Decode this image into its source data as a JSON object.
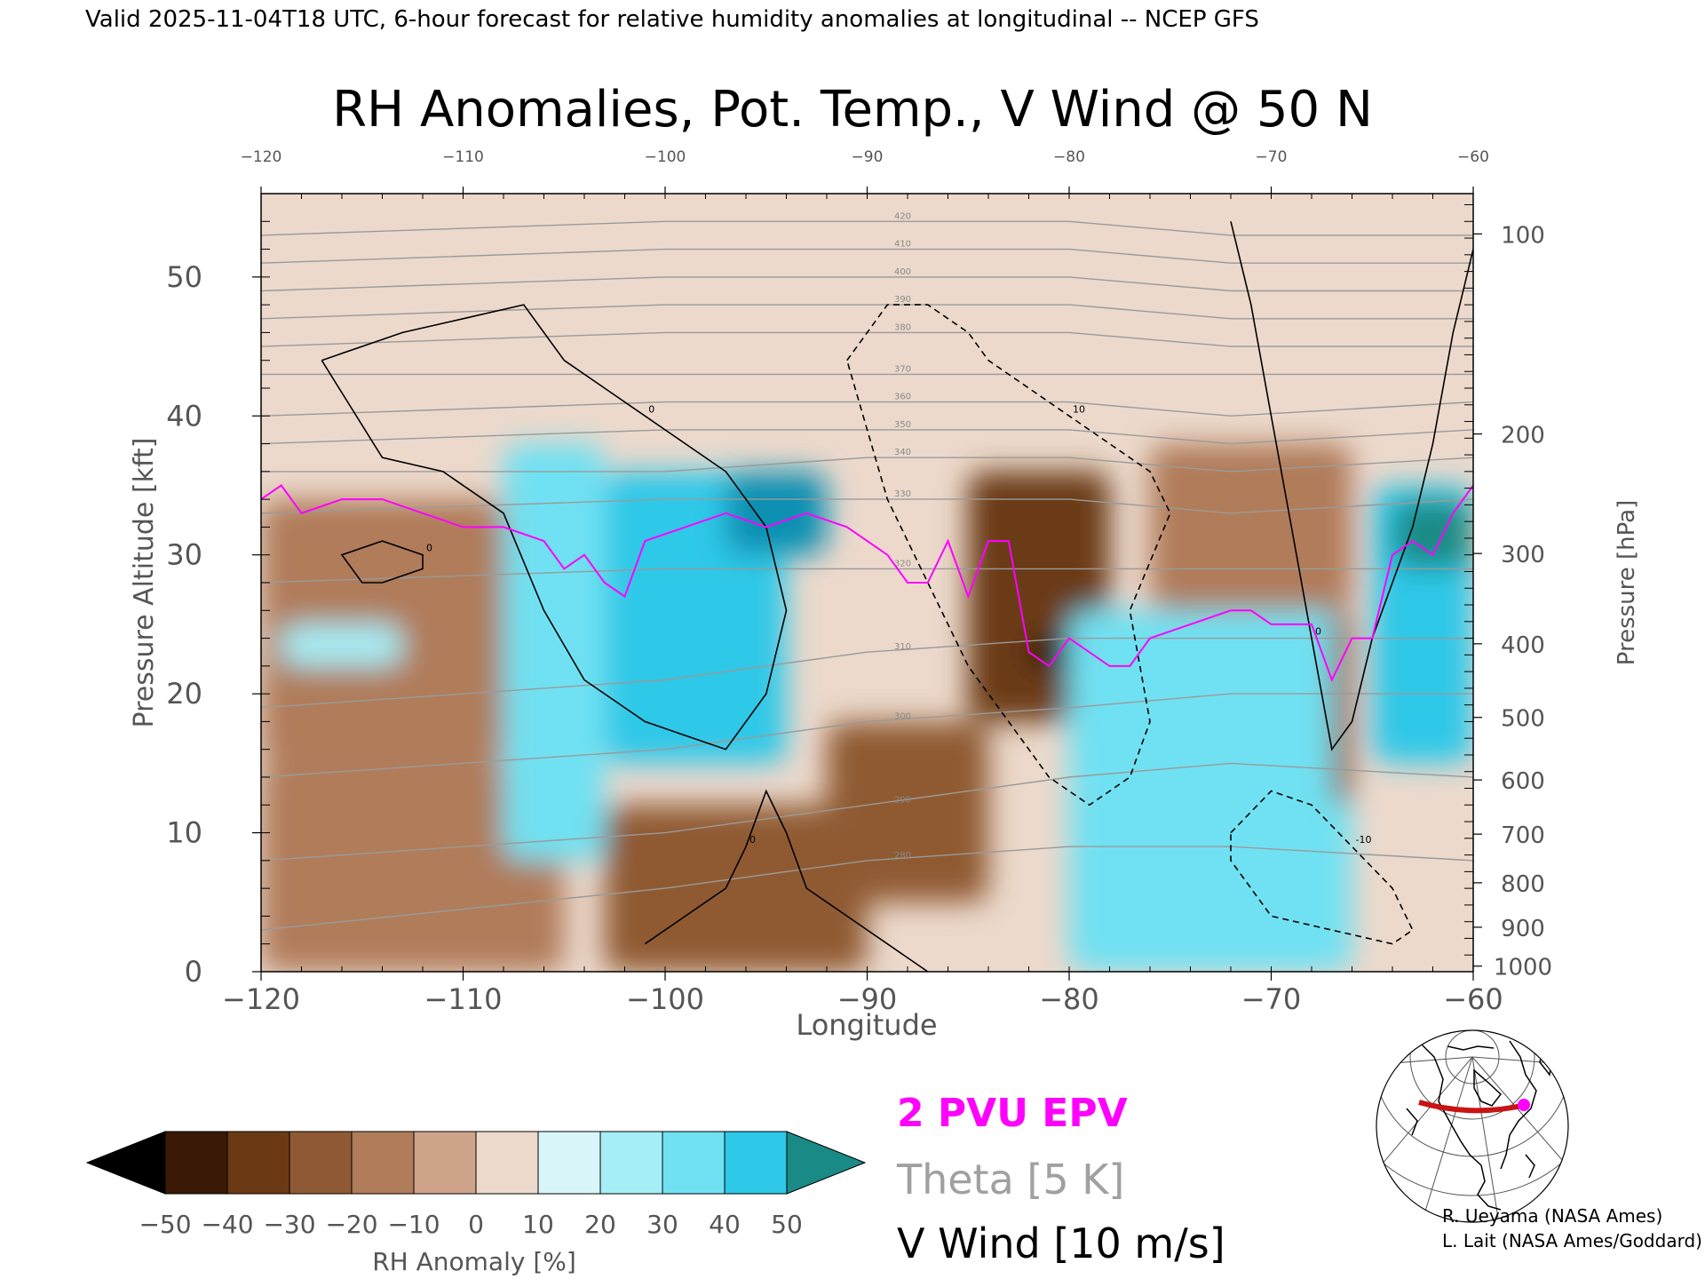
{
  "header": {
    "valid_line": "Valid 2025-11-04T18 UTC, 6-hour forecast for relative humidity anomalies at longitudinal -- NCEP GFS"
  },
  "chart_data": {
    "type": "heatmap",
    "title": "RH Anomalies, Pot. Temp., V Wind @ 50 N",
    "xlabel": "Longitude",
    "ylabel_left": "Pressure Altitude [kft]",
    "ylabel_right": "Pressure [hPa]",
    "xlim": [
      -120,
      -60
    ],
    "ylim": [
      0,
      56
    ],
    "x_ticks": [
      "-120",
      "-110",
      "-100",
      "-90",
      "-80",
      "-70",
      "-60"
    ],
    "x_tick_values": [
      -120,
      -110,
      -100,
      -90,
      -80,
      -70,
      -60
    ],
    "y_ticks": [
      "0",
      "10",
      "20",
      "30",
      "40",
      "50"
    ],
    "y_tick_values": [
      0,
      10,
      20,
      30,
      40,
      50
    ],
    "pressure_ticks": [
      {
        "label": "100",
        "kft": 53.1
      },
      {
        "label": "200",
        "kft": 38.7
      },
      {
        "label": "300",
        "kft": 30.1
      },
      {
        "label": "400",
        "kft": 23.6
      },
      {
        "label": "500",
        "kft": 18.3
      },
      {
        "label": "600",
        "kft": 13.8
      },
      {
        "label": "700",
        "kft": 9.9
      },
      {
        "label": "800",
        "kft": 6.4
      },
      {
        "label": "900",
        "kft": 3.2
      },
      {
        "label": "1000",
        "kft": 0.4
      }
    ],
    "colorbar": {
      "label": "RH Anomaly [%]",
      "ticks": [
        "-50",
        "-40",
        "-30",
        "-20",
        "-10",
        "0",
        "10",
        "20",
        "30",
        "40",
        "50"
      ],
      "low_extend_color": "#000000",
      "high_extend_color": "#1a8a86",
      "colors": [
        "#3a1a06",
        "#6b3a14",
        "#8f5a33",
        "#b07c5a",
        "#cfa48b",
        "#ecd9cc",
        "#d8f6fa",
        "#a6eef6",
        "#6fe1f2",
        "#2ec8e8",
        "#0a90b2"
      ]
    },
    "legend": [
      {
        "label": "2 PVU EPV",
        "color": "#ff00ff"
      },
      {
        "label": "Theta [5 K]",
        "color": "#a0a0a0"
      },
      {
        "label": "V Wind [10 m/s]",
        "color": "#000000"
      }
    ],
    "rh_anomaly_field": [
      {
        "x": [
          -120,
          -108
        ],
        "y": [
          15,
          34
        ],
        "value": -25
      },
      {
        "x": [
          -119,
          -113
        ],
        "y": [
          22,
          25
        ],
        "value": 15
      },
      {
        "x": [
          -120,
          -105
        ],
        "y": [
          0,
          15
        ],
        "value": -18
      },
      {
        "x": [
          -108,
          -103
        ],
        "y": [
          8,
          38
        ],
        "value": 25
      },
      {
        "x": [
          -103,
          -94
        ],
        "y": [
          15,
          36
        ],
        "value": 40
      },
      {
        "x": [
          -97,
          -92
        ],
        "y": [
          30,
          36
        ],
        "value": 45
      },
      {
        "x": [
          -103,
          -90
        ],
        "y": [
          0,
          12
        ],
        "value": -30
      },
      {
        "x": [
          -92,
          -84
        ],
        "y": [
          5,
          18
        ],
        "value": -35
      },
      {
        "x": [
          -85,
          -78
        ],
        "y": [
          18,
          36
        ],
        "value": -40
      },
      {
        "x": [
          -82,
          -80
        ],
        "y": [
          22,
          24
        ],
        "value": -55
      },
      {
        "x": [
          -80,
          -66
        ],
        "y": [
          0,
          26
        ],
        "value": 30
      },
      {
        "x": [
          -76,
          -66
        ],
        "y": [
          26,
          38
        ],
        "value": -22
      },
      {
        "x": [
          -67,
          -66
        ],
        "y": [
          12,
          26
        ],
        "value": -35
      },
      {
        "x": [
          -65,
          -60
        ],
        "y": [
          15,
          35
        ],
        "value": 40
      },
      {
        "x": [
          -64,
          -60
        ],
        "y": [
          29,
          34
        ],
        "value": 55
      }
    ],
    "theta_contours": [
      {
        "label": "280",
        "points": [
          [
            -120,
            3
          ],
          [
            -100,
            6
          ],
          [
            -90,
            8
          ],
          [
            -80,
            9
          ],
          [
            -72,
            9
          ],
          [
            -60,
            8
          ]
        ]
      },
      {
        "label": "290",
        "points": [
          [
            -120,
            8
          ],
          [
            -100,
            10
          ],
          [
            -90,
            12
          ],
          [
            -80,
            14
          ],
          [
            -72,
            15
          ],
          [
            -60,
            14
          ]
        ]
      },
      {
        "label": "300",
        "points": [
          [
            -120,
            14
          ],
          [
            -100,
            16
          ],
          [
            -90,
            18
          ],
          [
            -80,
            19
          ],
          [
            -72,
            20
          ],
          [
            -60,
            20
          ]
        ]
      },
      {
        "label": "310",
        "points": [
          [
            -120,
            19
          ],
          [
            -100,
            21
          ],
          [
            -90,
            23
          ],
          [
            -80,
            24
          ],
          [
            -72,
            24
          ],
          [
            -60,
            24
          ]
        ]
      },
      {
        "label": "320",
        "points": [
          [
            -120,
            28
          ],
          [
            -100,
            29
          ],
          [
            -90,
            29
          ],
          [
            -80,
            29
          ],
          [
            -72,
            29
          ],
          [
            -60,
            29
          ]
        ]
      },
      {
        "label": "330",
        "points": [
          [
            -120,
            33
          ],
          [
            -100,
            34
          ],
          [
            -90,
            34
          ],
          [
            -80,
            34
          ],
          [
            -72,
            33
          ],
          [
            -60,
            34
          ]
        ]
      },
      {
        "label": "340",
        "points": [
          [
            -120,
            36
          ],
          [
            -100,
            36
          ],
          [
            -90,
            37
          ],
          [
            -80,
            37
          ],
          [
            -72,
            36
          ],
          [
            -60,
            37
          ]
        ]
      },
      {
        "label": "350",
        "points": [
          [
            -120,
            38
          ],
          [
            -100,
            39
          ],
          [
            -90,
            39
          ],
          [
            -80,
            39
          ],
          [
            -72,
            38
          ],
          [
            -60,
            39
          ]
        ]
      },
      {
        "label": "360",
        "points": [
          [
            -120,
            40
          ],
          [
            -100,
            41
          ],
          [
            -90,
            41
          ],
          [
            -80,
            41
          ],
          [
            -72,
            40
          ],
          [
            -60,
            41
          ]
        ]
      },
      {
        "label": "370",
        "points": [
          [
            -120,
            43
          ],
          [
            -100,
            43
          ],
          [
            -90,
            43
          ],
          [
            -80,
            43
          ],
          [
            -72,
            43
          ],
          [
            -60,
            43
          ]
        ]
      },
      {
        "label": "380",
        "points": [
          [
            -120,
            45
          ],
          [
            -100,
            46
          ],
          [
            -90,
            46
          ],
          [
            -80,
            46
          ],
          [
            -72,
            45
          ],
          [
            -60,
            45
          ]
        ]
      },
      {
        "label": "390",
        "points": [
          [
            -120,
            47
          ],
          [
            -100,
            48
          ],
          [
            -90,
            48
          ],
          [
            -80,
            48
          ],
          [
            -72,
            47
          ],
          [
            -60,
            47
          ]
        ]
      },
      {
        "label": "400",
        "points": [
          [
            -120,
            49
          ],
          [
            -100,
            50
          ],
          [
            -90,
            50
          ],
          [
            -80,
            50
          ],
          [
            -72,
            49
          ],
          [
            -60,
            49
          ]
        ]
      },
      {
        "label": "410",
        "points": [
          [
            -120,
            51
          ],
          [
            -100,
            52
          ],
          [
            -90,
            52
          ],
          [
            -80,
            52
          ],
          [
            -72,
            51
          ],
          [
            -60,
            51
          ]
        ]
      },
      {
        "label": "420",
        "points": [
          [
            -120,
            53
          ],
          [
            -100,
            54
          ],
          [
            -90,
            54
          ],
          [
            -80,
            54
          ],
          [
            -72,
            53
          ],
          [
            -60,
            53
          ]
        ]
      }
    ],
    "epv_2pvu": [
      [
        -120,
        34
      ],
      [
        -119,
        35
      ],
      [
        -118,
        33
      ],
      [
        -116,
        34
      ],
      [
        -114,
        34
      ],
      [
        -112,
        33
      ],
      [
        -110,
        32
      ],
      [
        -108,
        32
      ],
      [
        -106,
        31
      ],
      [
        -105,
        29
      ],
      [
        -104,
        30
      ],
      [
        -103,
        28
      ],
      [
        -102,
        27
      ],
      [
        -101,
        31
      ],
      [
        -99,
        32
      ],
      [
        -97,
        33
      ],
      [
        -95,
        32
      ],
      [
        -93,
        33
      ],
      [
        -91,
        32
      ],
      [
        -89,
        30
      ],
      [
        -88,
        28
      ],
      [
        -87,
        28
      ],
      [
        -86,
        31
      ],
      [
        -85,
        27
      ],
      [
        -84,
        31
      ],
      [
        -83,
        31
      ],
      [
        -82,
        23
      ],
      [
        -81,
        22
      ],
      [
        -80,
        24
      ],
      [
        -78,
        22
      ],
      [
        -77,
        22
      ],
      [
        -76,
        24
      ],
      [
        -74,
        25
      ],
      [
        -72,
        26
      ],
      [
        -71,
        26
      ],
      [
        -70,
        25
      ],
      [
        -68,
        25
      ],
      [
        -67,
        21
      ],
      [
        -66,
        24
      ],
      [
        -65,
        24
      ],
      [
        -64,
        30
      ],
      [
        -63,
        31
      ],
      [
        -62,
        30
      ],
      [
        -61,
        33
      ],
      [
        -60,
        35
      ]
    ],
    "v_wind_contours": [
      {
        "label": "0",
        "style": "solid",
        "points": [
          [
            -117,
            44
          ],
          [
            -113,
            46
          ],
          [
            -110,
            47
          ],
          [
            -107,
            48
          ],
          [
            -106,
            46
          ],
          [
            -105,
            44
          ],
          [
            -103,
            42
          ],
          [
            -101,
            40
          ],
          [
            -99,
            38
          ],
          [
            -97,
            36
          ],
          [
            -95,
            32
          ],
          [
            -94,
            26
          ],
          [
            -95,
            20
          ],
          [
            -97,
            16
          ],
          [
            -99,
            17
          ],
          [
            -101,
            18
          ],
          [
            -104,
            21
          ],
          [
            -106,
            26
          ],
          [
            -108,
            33
          ],
          [
            -111,
            36
          ],
          [
            -114,
            37
          ],
          [
            -117,
            44
          ]
        ]
      },
      {
        "label": "0",
        "style": "solid",
        "points": [
          [
            -114,
            28
          ],
          [
            -112,
            29
          ],
          [
            -112,
            30
          ],
          [
            -114,
            31
          ],
          [
            -116,
            30
          ],
          [
            -115,
            28
          ],
          [
            -114,
            28
          ]
        ]
      },
      {
        "label": "0",
        "style": "solid",
        "points": [
          [
            -101,
            2
          ],
          [
            -99,
            4
          ],
          [
            -97,
            6
          ],
          [
            -96,
            9
          ],
          [
            -95,
            13
          ],
          [
            -94,
            10
          ],
          [
            -93,
            6
          ],
          [
            -91,
            4
          ],
          [
            -89,
            2
          ],
          [
            -87,
            0
          ]
        ]
      },
      {
        "label": "0",
        "style": "solid",
        "points": [
          [
            -72,
            54
          ],
          [
            -71,
            48
          ],
          [
            -70,
            40
          ],
          [
            -69,
            32
          ],
          [
            -68,
            24
          ],
          [
            -67,
            16
          ],
          [
            -66,
            18
          ],
          [
            -65,
            24
          ],
          [
            -64,
            28
          ],
          [
            -63,
            32
          ],
          [
            -62,
            38
          ],
          [
            -61,
            46
          ],
          [
            -60,
            52
          ]
        ]
      },
      {
        "label": "10",
        "style": "dashed",
        "points": [
          [
            -91,
            44
          ],
          [
            -89,
            48
          ],
          [
            -87,
            48
          ],
          [
            -85,
            46
          ],
          [
            -84,
            44
          ],
          [
            -82,
            42
          ],
          [
            -80,
            40
          ],
          [
            -78,
            38
          ],
          [
            -76,
            36
          ],
          [
            -75,
            33
          ],
          [
            -77,
            26
          ],
          [
            -76,
            18
          ],
          [
            -77,
            14
          ],
          [
            -79,
            12
          ],
          [
            -81,
            14
          ],
          [
            -83,
            18
          ],
          [
            -85,
            22
          ],
          [
            -87,
            28
          ],
          [
            -89,
            34
          ],
          [
            -91,
            44
          ]
        ]
      },
      {
        "label": "-10",
        "style": "dashed",
        "points": [
          [
            -72,
            10
          ],
          [
            -70,
            13
          ],
          [
            -68,
            12
          ],
          [
            -66,
            9
          ],
          [
            -64,
            6
          ],
          [
            -63,
            3
          ],
          [
            -64,
            2
          ],
          [
            -67,
            3
          ],
          [
            -70,
            4
          ],
          [
            -72,
            8
          ],
          [
            -72,
            10
          ]
        ]
      }
    ],
    "inset_map": {
      "section_latitude": "50 N",
      "section_lon_range": [
        -120,
        -60
      ]
    }
  },
  "credits": {
    "line1": "R. Ueyama (NASA Ames)",
    "line2": "L. Lait (NASA Ames/Goddard)"
  }
}
